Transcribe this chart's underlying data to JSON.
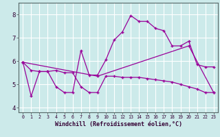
{
  "background_color": "#cceaea",
  "grid_color": "#b0d8d8",
  "line_color": "#990099",
  "marker": "+",
  "ylabel_values": [
    4,
    5,
    6,
    7,
    8
  ],
  "xlabel_values": [
    0,
    1,
    2,
    3,
    4,
    5,
    6,
    7,
    8,
    9,
    10,
    11,
    12,
    13,
    14,
    15,
    16,
    17,
    18,
    19,
    20,
    21,
    22,
    23
  ],
  "xlabel_label": "Windchill (Refroidissement éolien,°C)",
  "ylim": [
    3.8,
    8.5
  ],
  "xlim": [
    -0.5,
    23.5
  ],
  "series1_x": [
    0,
    1,
    2,
    3,
    4,
    5,
    6,
    7,
    8,
    9,
    10,
    11,
    12,
    13,
    14,
    15,
    16,
    17,
    18,
    19,
    20,
    21,
    22,
    23
  ],
  "series1_y": [
    5.95,
    5.6,
    5.55,
    5.55,
    5.6,
    5.5,
    5.5,
    4.9,
    4.65,
    4.65,
    5.35,
    5.35,
    5.3,
    5.3,
    5.3,
    5.25,
    5.2,
    5.15,
    5.1,
    5.0,
    4.9,
    4.8,
    4.65,
    4.65
  ],
  "series2_x": [
    0,
    1,
    2,
    3,
    4,
    5,
    6,
    7,
    8,
    9,
    10,
    11,
    12,
    13,
    14,
    15,
    16,
    17,
    18,
    19,
    20,
    21,
    22,
    23
  ],
  "series2_y": [
    5.95,
    4.5,
    5.55,
    5.55,
    4.9,
    4.65,
    4.65,
    6.45,
    5.4,
    5.4,
    6.05,
    6.9,
    7.25,
    7.95,
    7.7,
    7.7,
    7.4,
    7.3,
    6.65,
    6.65,
    6.85,
    5.85,
    5.75,
    5.75
  ],
  "series3_x": [
    0,
    9,
    20,
    23
  ],
  "series3_y": [
    5.95,
    5.35,
    6.65,
    4.65
  ]
}
